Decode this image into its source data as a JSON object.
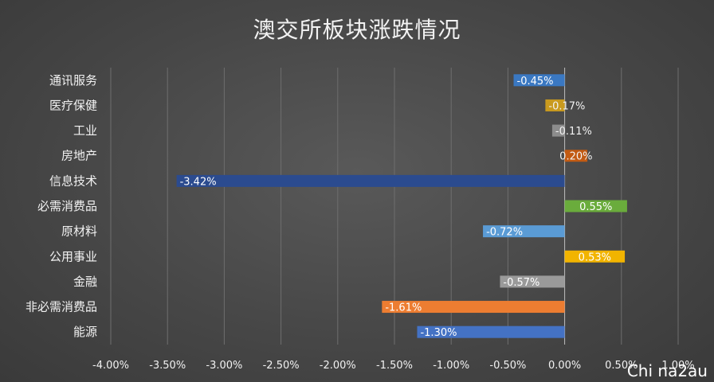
{
  "chart_data": {
    "type": "bar",
    "orientation": "horizontal",
    "title": "澳交所板块涨跌情况",
    "categories": [
      "通讯服务",
      "医疗保健",
      "工业",
      "房地产",
      "信息技术",
      "必需消费品",
      "原材料",
      "公用事业",
      "金融",
      "非必需消费品",
      "能源"
    ],
    "values": [
      -0.45,
      -0.17,
      -0.11,
      0.2,
      -3.42,
      0.55,
      -0.72,
      0.53,
      -0.57,
      -1.61,
      -1.3
    ],
    "data_labels": [
      "-0.45%",
      "-0.17%",
      "-0.11%",
      "0.20%",
      "-3.42%",
      "0.55%",
      "-0.72%",
      "0.53%",
      "-0.57%",
      "-1.61%",
      "-1.30%"
    ],
    "colors": [
      "#3a78c2",
      "#c99a1e",
      "#8c8c8c",
      "#c25a12",
      "#2b4b8f",
      "#6aac3c",
      "#5a9bd5",
      "#f2b400",
      "#9a9a9a",
      "#ed7d31",
      "#4472c4"
    ],
    "label_colors": [
      "#ffffff",
      "#f2f2f2",
      "#f2f2f2",
      "#f2f2f2",
      "#ffffff",
      "#ffffff",
      "#ffffff",
      "#ffffff",
      "#ffffff",
      "#ffffff",
      "#ffffff"
    ],
    "xlim": [
      -4.0,
      1.0
    ],
    "xticks": [
      -4.0,
      -3.5,
      -3.0,
      -2.5,
      -2.0,
      -1.5,
      -1.0,
      -0.5,
      0.0,
      0.5,
      1.0
    ],
    "xtick_labels": [
      "-4.00%",
      "-3.50%",
      "-3.00%",
      "-2.50%",
      "-2.00%",
      "-1.50%",
      "-1.00%",
      "-0.50%",
      "0.00%",
      "0.50%",
      "1.00%"
    ],
    "grid": true,
    "xlabel": "",
    "ylabel": ""
  },
  "watermark": "Chi na2au",
  "theme": {
    "grid_color": "#6e6e6e",
    "axis_color": "#bfbfbf"
  }
}
